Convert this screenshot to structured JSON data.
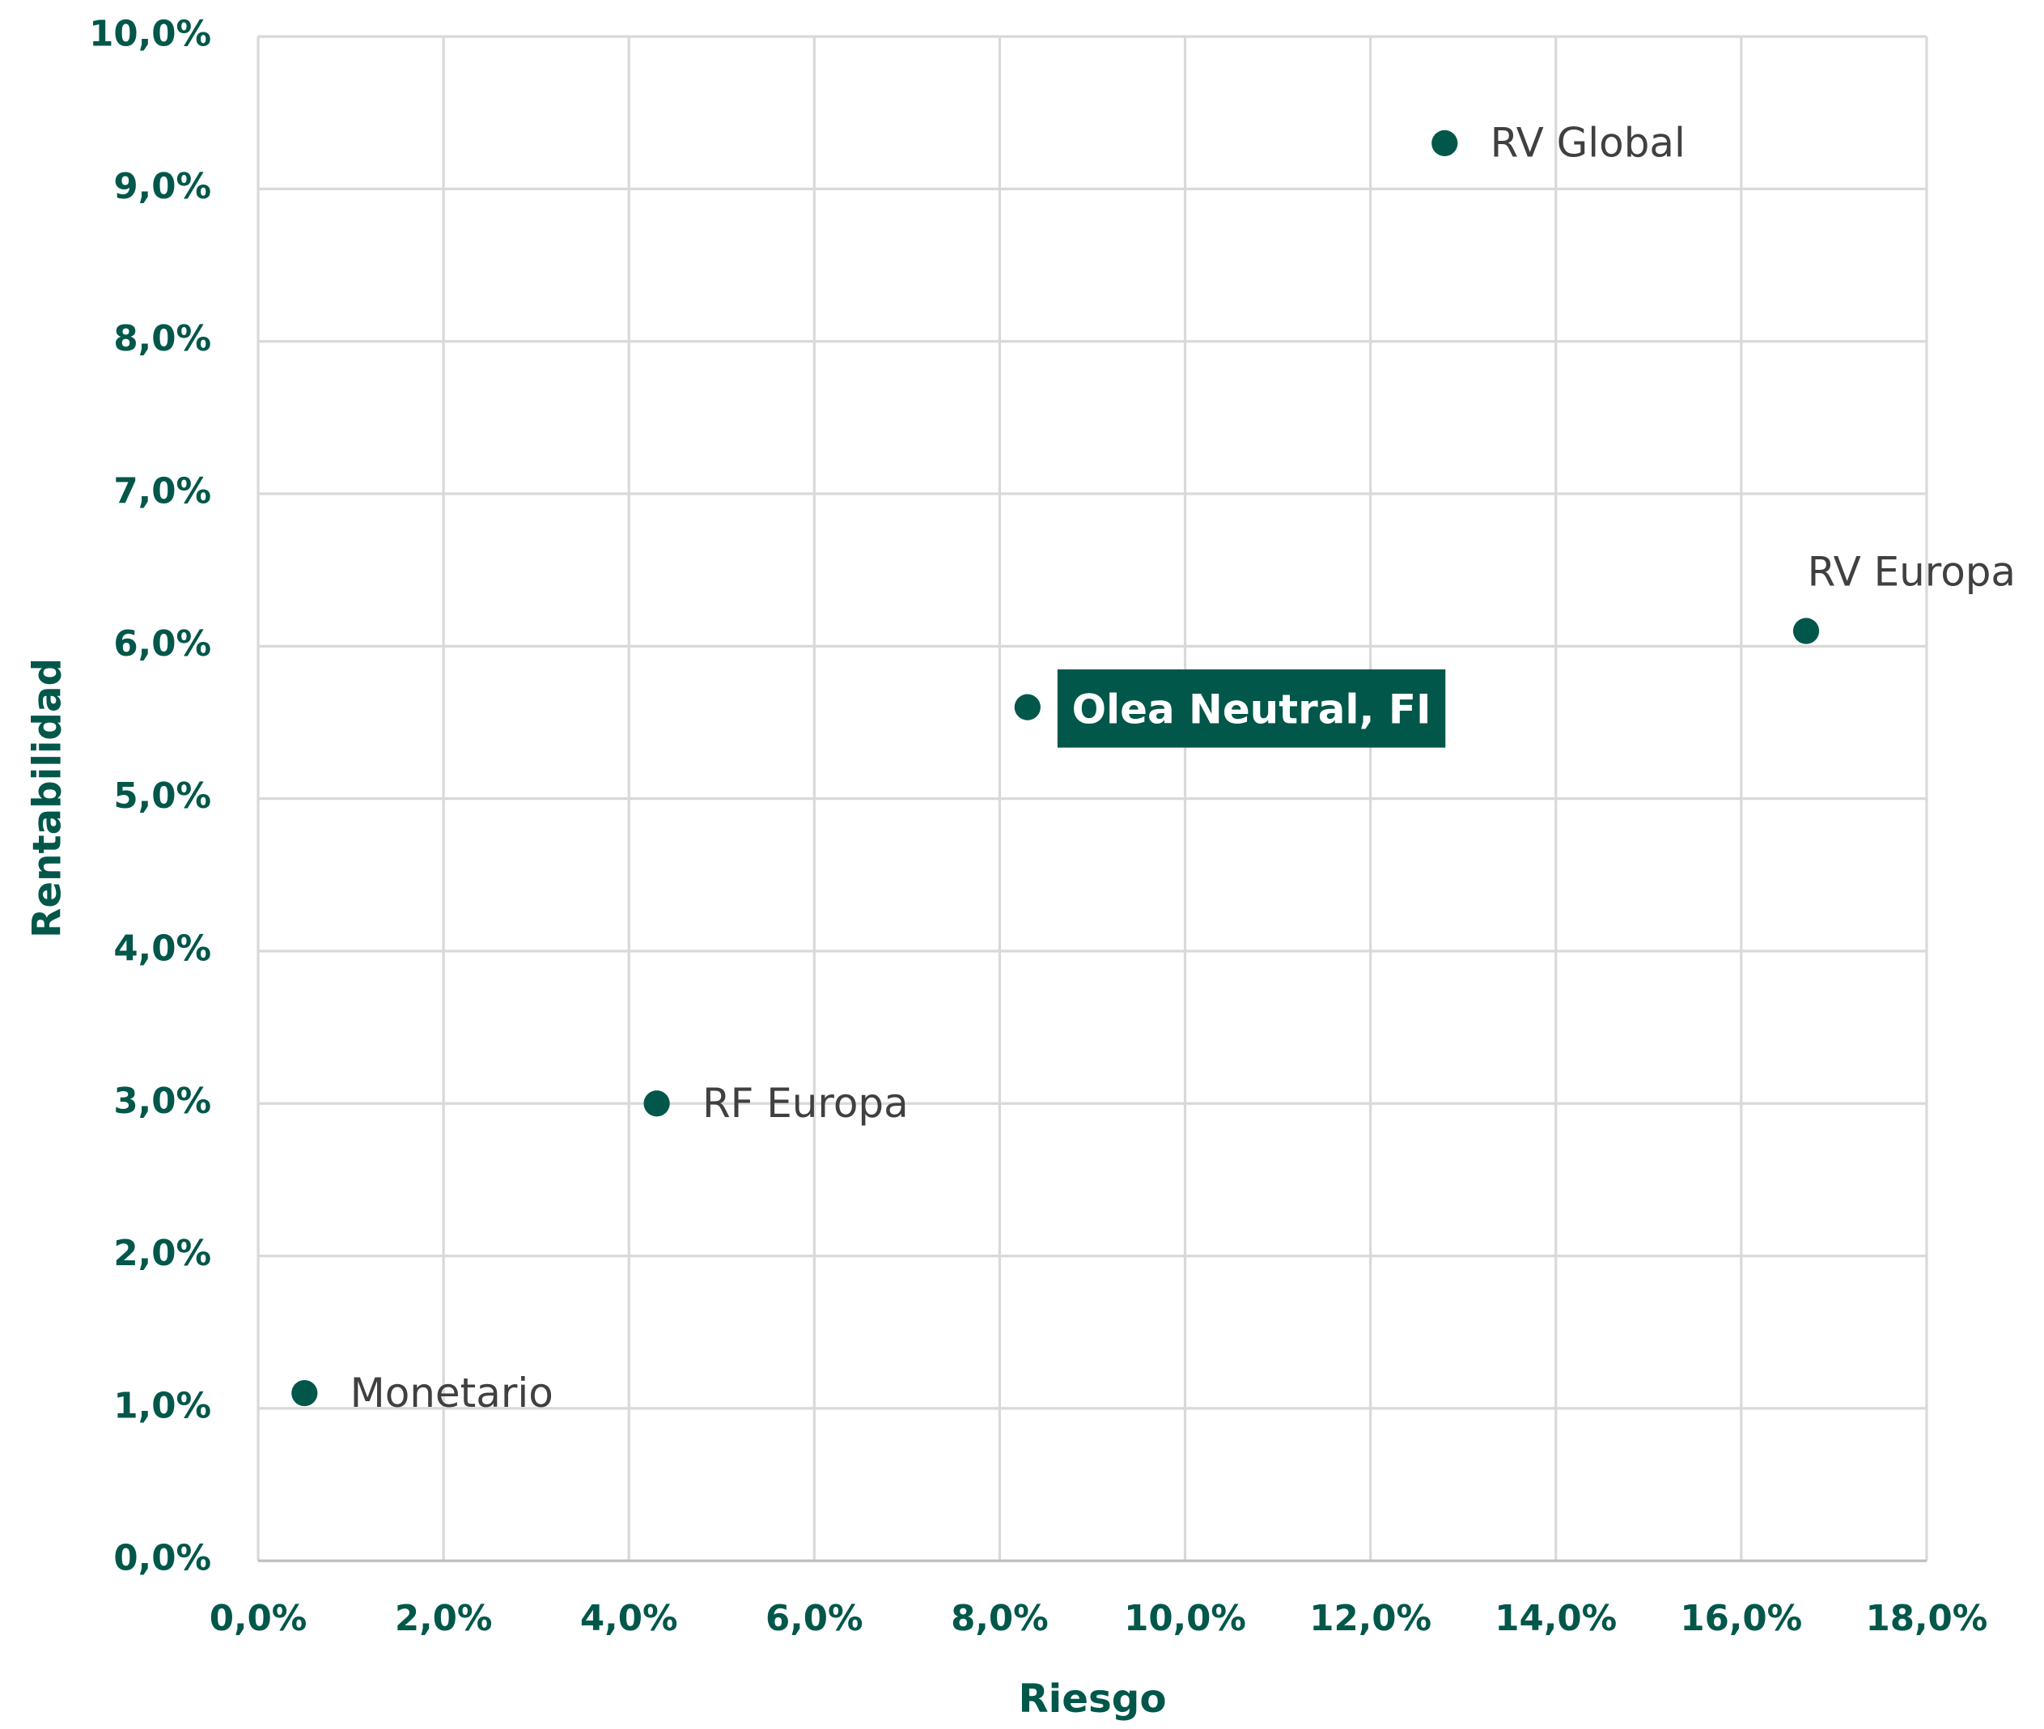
{
  "chart_data": {
    "type": "scatter",
    "x_label": "Riesgo",
    "y_label": "Rentabilidad",
    "labels": [
      "RV Global",
      "RV Europa",
      "Olea Neutral, FI",
      "RF Europa",
      "Monetario"
    ],
    "x": [
      12.8,
      16.7,
      8.3,
      4.3,
      0.5
    ],
    "values": [
      9.3,
      6.1,
      5.6,
      3.0,
      1.1
    ],
    "color": "#00574a",
    "highlight_index": 2,
    "xlim": [
      0,
      18
    ],
    "xticks": [
      {
        "value": 0,
        "label": "0,0%"
      },
      {
        "value": 2,
        "label": "2,0%"
      },
      {
        "value": 4,
        "label": "4,0%"
      },
      {
        "value": 6,
        "label": "6,0%"
      },
      {
        "value": 8,
        "label": "8,0%"
      },
      {
        "value": 10,
        "label": "10,0%"
      },
      {
        "value": 12,
        "label": "12,0%"
      },
      {
        "value": 14,
        "label": "14,0%"
      },
      {
        "value": 16,
        "label": "16,0%"
      },
      {
        "value": 18,
        "label": "18,0%"
      }
    ],
    "ylim": [
      0,
      10
    ],
    "yticks": [
      {
        "value": 0,
        "label": "0,0%"
      },
      {
        "value": 1,
        "label": "1,0%"
      },
      {
        "value": 2,
        "label": "2,0%"
      },
      {
        "value": 3,
        "label": "3,0%"
      },
      {
        "value": 4,
        "label": "4,0%"
      },
      {
        "value": 5,
        "label": "5,0%"
      },
      {
        "value": 6,
        "label": "6,0%"
      },
      {
        "value": 7,
        "label": "7,0%"
      },
      {
        "value": 8,
        "label": "8,0%"
      },
      {
        "value": 9,
        "label": "9,0%"
      },
      {
        "value": 10,
        "label": "10,0%"
      }
    ],
    "grid": true
  }
}
